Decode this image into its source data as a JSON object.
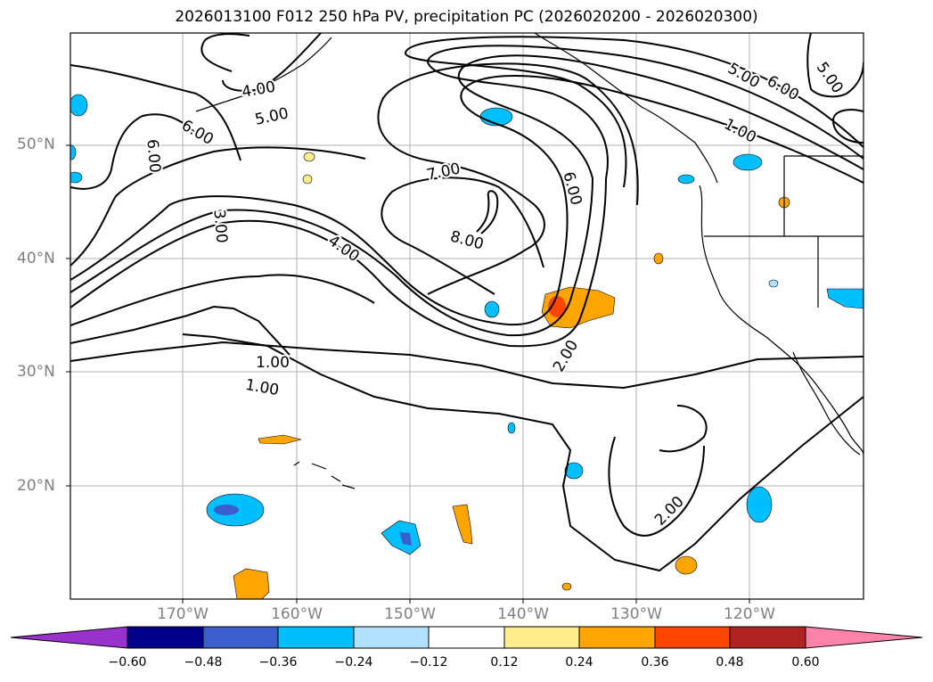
{
  "title": "2026013100 F012 250 hPa PV, precipitation PC (2026020200 - 2026020300)",
  "lat_labels": [
    "20°N",
    "30°N",
    "40°N",
    "50°N"
  ],
  "lon_labels": [
    "170°W",
    "160°W",
    "150°W",
    "140°W",
    "130°W",
    "120°W"
  ],
  "contour_labels": [
    "4.00",
    "5.00",
    "6.00",
    "6.00",
    "3.00",
    "4.00",
    "7.00",
    "8.00",
    "6.00",
    "5.00",
    "6.00",
    "5.00",
    "1.00",
    "1.00",
    "1.00",
    "2.00",
    "2.00"
  ],
  "colorbar": {
    "ticks": [
      "−0.60",
      "−0.48",
      "−0.36",
      "−0.24",
      "−0.12",
      "0.12",
      "0.24",
      "0.36",
      "0.48",
      "0.60"
    ],
    "colors": [
      "#9932cc",
      "#00008b",
      "#3a5fcd",
      "#00bfff",
      "#b0e2ff",
      "#ffffff",
      "#ffec8b",
      "#ffa500",
      "#ff4500",
      "#b22222",
      "#ff82ab"
    ]
  }
}
